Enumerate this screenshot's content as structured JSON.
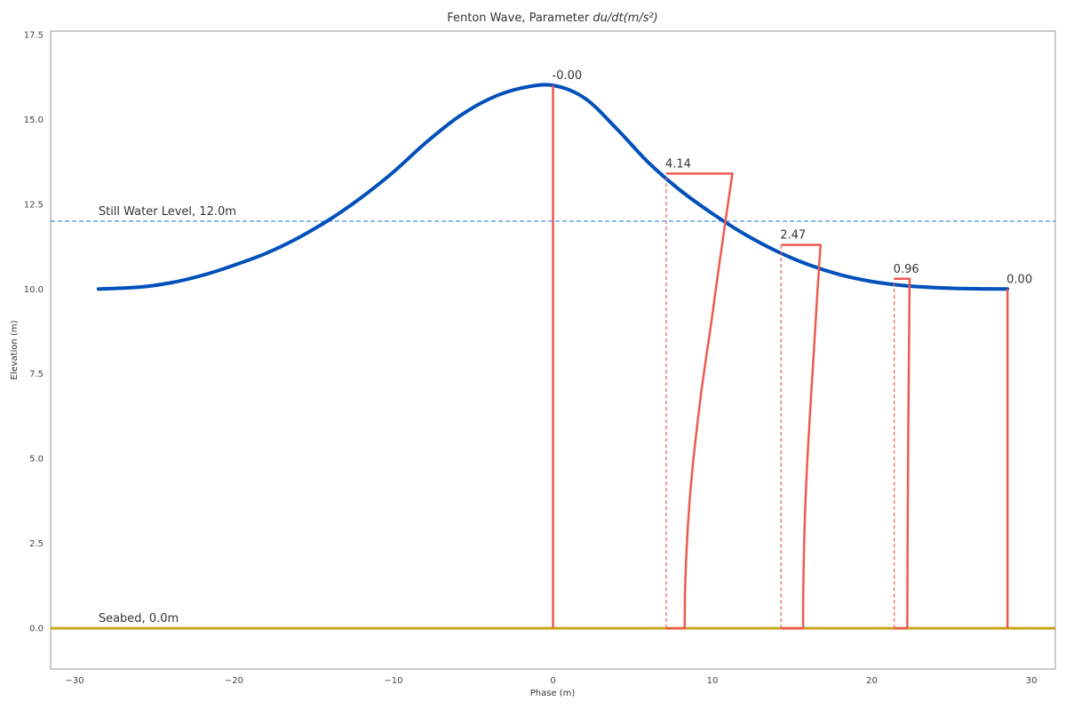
{
  "chart_data": {
    "type": "line",
    "title": "Fenton Wave, Parameter du/dt(m/s²)",
    "title_main": "Fenton Wave, Parameter ",
    "title_math": "du/dt(m/s²)",
    "xlabel": "Phase (m)",
    "ylabel": "Elevation (m)",
    "xlim": [
      -31.5,
      31.5
    ],
    "ylim": [
      -1.2,
      17.6
    ],
    "xticks": [
      -30,
      -20,
      -10,
      0,
      10,
      20,
      30
    ],
    "xtick_labels": [
      "−30",
      "−20",
      "−10",
      "0",
      "10",
      "20",
      "30"
    ],
    "yticks": [
      0,
      2.5,
      5,
      7.5,
      10,
      12.5,
      15,
      17.5
    ],
    "ytick_labels": [
      "0.0",
      "2.5",
      "5.0",
      "7.5",
      "10.0",
      "12.5",
      "15.0",
      "17.5"
    ],
    "grid": false,
    "colors": {
      "wave": "#0050bb",
      "swl": "#4a8fdf",
      "seabed": "#c8a51a",
      "profile": "#ee5a50"
    },
    "wave_profile": {
      "name": "Wave surface",
      "x": [
        -28.5,
        -26,
        -24,
        -22,
        -20,
        -18,
        -16,
        -14,
        -12,
        -10,
        -8,
        -6,
        -4,
        -2,
        0,
        2,
        4,
        6,
        8,
        10,
        12,
        14,
        16,
        18,
        20,
        22,
        24,
        26,
        28.5
      ],
      "y": [
        10.0,
        10.05,
        10.18,
        10.4,
        10.7,
        11.05,
        11.5,
        12.05,
        12.7,
        13.45,
        14.3,
        15.05,
        15.6,
        15.92,
        16.0,
        15.62,
        14.72,
        13.72,
        12.9,
        12.22,
        11.62,
        11.12,
        10.72,
        10.42,
        10.22,
        10.1,
        10.04,
        10.01,
        10.0
      ]
    },
    "still_water_level": {
      "label": "Still Water Level, 12.0m",
      "value": 12.0
    },
    "seabed": {
      "label": "Seabed, 0.0m",
      "value": 0.0
    },
    "velocity_profiles": [
      {
        "x": 0.0,
        "surface": 16.0,
        "label": "-0.00",
        "elev": [
          0,
          16.0
        ],
        "value": [
          0,
          0
        ]
      },
      {
        "x": 7.1,
        "surface": 13.4,
        "label": "4.14",
        "elev": [
          0,
          1,
          2,
          3,
          4,
          5,
          6,
          7,
          8,
          9,
          10,
          11,
          12,
          13.4
        ],
        "value": [
          1.15,
          1.17,
          1.24,
          1.35,
          1.5,
          1.7,
          1.94,
          2.2,
          2.5,
          2.82,
          3.1,
          3.4,
          3.7,
          4.14
        ]
      },
      {
        "x": 14.3,
        "surface": 11.3,
        "label": "2.47",
        "elev": [
          0,
          1,
          2,
          3,
          4,
          5,
          6,
          7,
          8,
          9,
          10,
          11.3
        ],
        "value": [
          1.38,
          1.39,
          1.42,
          1.47,
          1.55,
          1.65,
          1.77,
          1.9,
          2.03,
          2.16,
          2.29,
          2.47
        ]
      },
      {
        "x": 21.4,
        "surface": 10.3,
        "label": "0.96",
        "elev": [
          0,
          2,
          4,
          6,
          8,
          10.3
        ],
        "value": [
          0.82,
          0.83,
          0.85,
          0.88,
          0.92,
          0.96
        ]
      },
      {
        "x": 28.5,
        "surface": 10.0,
        "label": "0.00",
        "elev": [
          0,
          10.0
        ],
        "value": [
          0,
          0
        ]
      }
    ]
  }
}
